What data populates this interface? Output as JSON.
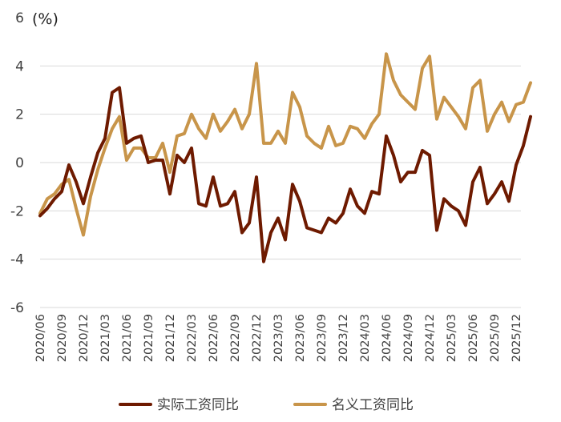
{
  "chart_data": {
    "type": "line",
    "title": "",
    "xlabel": "",
    "ylabel": "",
    "unit_label": "(%)",
    "ylim": [
      -6,
      6
    ],
    "yticks": [
      6,
      4,
      2,
      0,
      -2,
      -4,
      -6
    ],
    "grid": "horizontal",
    "legend_position": "bottom",
    "x": [
      "2020/06",
      "2020/07",
      "2020/08",
      "2020/09",
      "2020/10",
      "2020/11",
      "2020/12",
      "2021/01",
      "2021/02",
      "2021/03",
      "2021/04",
      "2021/05",
      "2021/06",
      "2021/07",
      "2021/08",
      "2021/09",
      "2021/10",
      "2021/11",
      "2021/12",
      "2022/01",
      "2022/02",
      "2022/03",
      "2022/04",
      "2022/05",
      "2022/06",
      "2022/07",
      "2022/08",
      "2022/09",
      "2022/10",
      "2022/11",
      "2022/12",
      "2023/01",
      "2023/02",
      "2023/03",
      "2023/04",
      "2023/05",
      "2023/06",
      "2023/07",
      "2023/08",
      "2023/09",
      "2023/10",
      "2023/11",
      "2023/12",
      "2024/01",
      "2024/02",
      "2024/03",
      "2024/04",
      "2024/05",
      "2024/06",
      "2024/07",
      "2024/08",
      "2024/09",
      "2024/10",
      "2024/11",
      "2024/12",
      "2025/01",
      "2025/02",
      "2025/03",
      "2025/04",
      "2025/05",
      "2025/06",
      "2025/07",
      "2025/08",
      "2025/09",
      "2025/10",
      "2025/11",
      "2025/12",
      "2026/01",
      "2026/02"
    ],
    "x_tick_labels": [
      "2020/06",
      "2020/09",
      "2020/12",
      "2021/03",
      "2021/06",
      "2021/09",
      "2021/12",
      "2022/03",
      "2022/06",
      "2022/09",
      "2022/12",
      "2023/03",
      "2023/06",
      "2023/09",
      "2023/12",
      "2024/03",
      "2024/06",
      "2024/09",
      "2024/12",
      "2025/03",
      "2025/06",
      "2025/09",
      "2025/12"
    ],
    "series": [
      {
        "name": "实际工资同比",
        "color": "#6e1a00",
        "values": [
          -2.2,
          -1.9,
          -1.5,
          -1.2,
          -0.1,
          -0.8,
          -1.7,
          -0.6,
          0.4,
          1.0,
          2.9,
          3.1,
          0.8,
          1.0,
          1.1,
          0.0,
          0.1,
          0.1,
          -1.3,
          0.3,
          0.0,
          0.6,
          -1.7,
          -1.8,
          -0.6,
          -1.8,
          -1.7,
          -1.2,
          -2.9,
          -2.5,
          -0.6,
          -4.1,
          -2.9,
          -2.3,
          -3.2,
          -0.9,
          -1.6,
          -2.7,
          -2.8,
          -2.9,
          -2.3,
          -2.5,
          -2.1,
          -1.1,
          -1.8,
          -2.1,
          -1.2,
          -1.3,
          1.1,
          0.3,
          -0.8,
          -0.4,
          -0.4,
          0.5,
          0.3,
          -2.8,
          -1.5,
          -1.8,
          -2.0,
          -2.6,
          -0.8,
          -0.2,
          -1.7,
          -1.3,
          -0.8,
          -1.6,
          -0.1,
          0.7,
          1.9
        ]
      },
      {
        "name": "名义工资同比",
        "color": "#c8954a",
        "values": [
          -2.1,
          -1.5,
          -1.3,
          -0.9,
          -0.7,
          -1.9,
          -3.0,
          -1.4,
          -0.3,
          0.6,
          1.4,
          1.9,
          0.1,
          0.6,
          0.6,
          0.2,
          0.2,
          0.8,
          -0.4,
          1.1,
          1.2,
          2.0,
          1.4,
          1.0,
          2.0,
          1.3,
          1.7,
          2.2,
          1.4,
          2.0,
          4.1,
          0.8,
          0.8,
          1.3,
          0.8,
          2.9,
          2.3,
          1.1,
          0.8,
          0.6,
          1.5,
          0.7,
          0.8,
          1.5,
          1.4,
          1.0,
          1.6,
          2.0,
          4.5,
          3.4,
          2.8,
          2.5,
          2.2,
          3.9,
          4.4,
          1.8,
          2.7,
          2.3,
          1.9,
          1.4,
          3.1,
          3.4,
          1.3,
          2.0,
          2.5,
          1.7,
          2.4,
          2.5,
          3.3
        ]
      }
    ]
  }
}
